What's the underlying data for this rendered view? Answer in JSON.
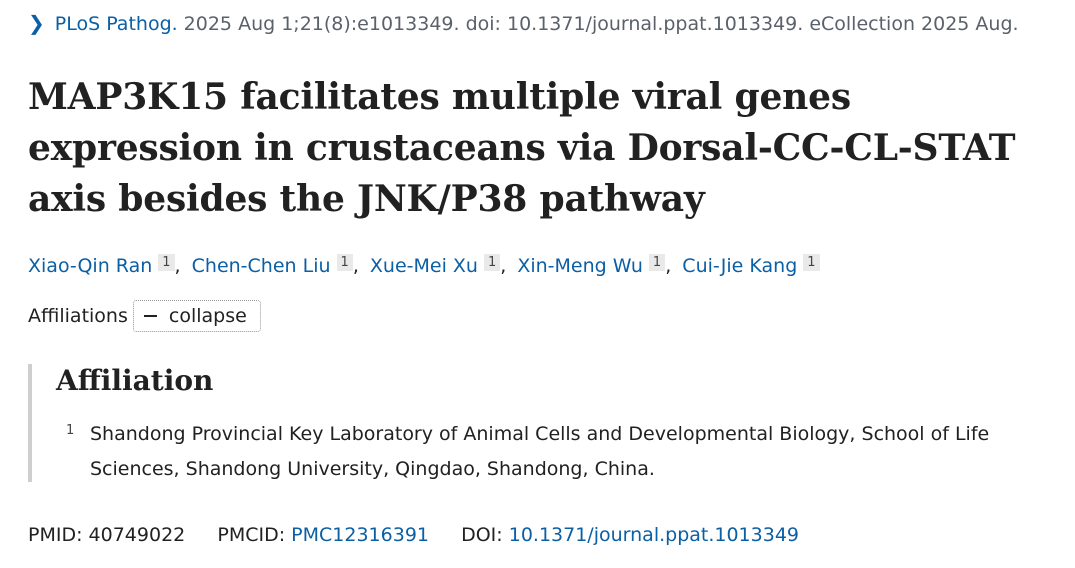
{
  "citation": {
    "chevron": "chevron-right-icon",
    "journal": "PLoS Pathog.",
    "details": "2025 Aug 1;21(8):e1013349. doi: 10.1371/journal.ppat.1013349. eCollection 2025 Aug."
  },
  "title": "MAP3K15 facilitates multiple viral genes expression in crustaceans via Dorsal-CC-CL-STAT axis besides the JNK/P38 pathway",
  "authors": [
    {
      "name": "Xiao-Qin Ran",
      "sup": "1"
    },
    {
      "name": "Chen-Chen Liu",
      "sup": "1"
    },
    {
      "name": "Xue-Mei Xu",
      "sup": "1"
    },
    {
      "name": "Xin-Meng Wu",
      "sup": "1"
    },
    {
      "name": "Cui-Jie Kang",
      "sup": "1"
    }
  ],
  "affiliations_toggle": {
    "label": "Affiliations",
    "button_label": "collapse",
    "button_icon": "minus-icon"
  },
  "affiliation_section": {
    "heading": "Affiliation",
    "items": [
      {
        "number": "1",
        "text": "Shandong Provincial Key Laboratory of Animal Cells and Developmental Biology, School of Life Sciences, Shandong University, Qingdao, Shandong, China."
      }
    ]
  },
  "identifiers": {
    "pmid_label": "PMID:",
    "pmid": "40749022",
    "pmcid_label": "PMCID:",
    "pmcid": "PMC12316391",
    "doi_label": "DOI:",
    "doi": "10.1371/journal.ppat.1013349"
  },
  "colors": {
    "link": "#0b5fa5",
    "text": "#212121",
    "muted": "#5b616b",
    "affil_border": "#cfcfcf"
  }
}
